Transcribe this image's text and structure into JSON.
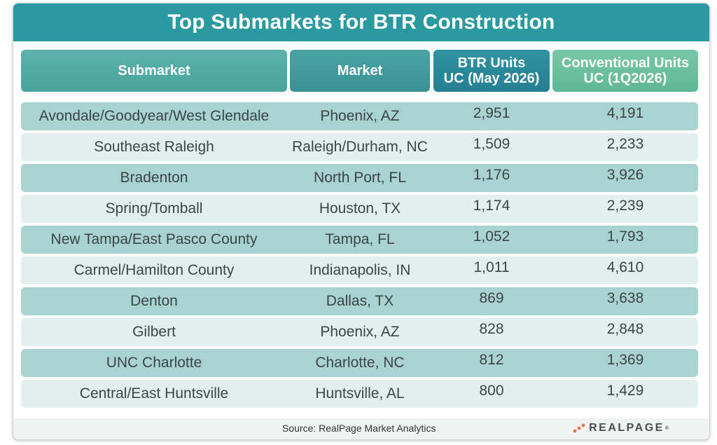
{
  "title": "Top Submarkets for BTR Construction",
  "headers": {
    "submarket": "Submarket",
    "market": "Market",
    "btr_line1": "BTR Units",
    "btr_line2": "UC (May 2026)",
    "conv_line1": "Conventional Units",
    "conv_line2": "UC (1Q2026)"
  },
  "chart_data": {
    "type": "table",
    "title": "Top Submarkets for BTR Construction",
    "columns": [
      "Submarket",
      "Market",
      "BTR Units UC (May 2026)",
      "Conventional Units UC (1Q2026)"
    ],
    "rows": [
      [
        "Avondale/Goodyear/West Glendale",
        "Phoenix, AZ",
        "2,951",
        "4,191"
      ],
      [
        "Southeast Raleigh",
        "Raleigh/Durham, NC",
        "1,509",
        "2,233"
      ],
      [
        "Bradenton",
        "North Port, FL",
        "1,176",
        "3,926"
      ],
      [
        "Spring/Tomball",
        "Houston, TX",
        "1,174",
        "2,239"
      ],
      [
        "New Tampa/East Pasco County",
        "Tampa, FL",
        "1,052",
        "1,793"
      ],
      [
        "Carmel/Hamilton County",
        "Indianapolis, IN",
        "1,011",
        "4,610"
      ],
      [
        "Denton",
        "Dallas, TX",
        "869",
        "3,638"
      ],
      [
        "Gilbert",
        "Phoenix, AZ",
        "828",
        "2,848"
      ],
      [
        "UNC Charlotte",
        "Charlotte, NC",
        "812",
        "1,369"
      ],
      [
        "Central/East Huntsville",
        "Huntsville, AL",
        "800",
        "1,429"
      ]
    ]
  },
  "footer": {
    "source": "Source:  RealPage Market Analytics",
    "logo_text": "REALPAGE",
    "logo_tm": "®"
  },
  "colors": {
    "title_bar": "#2b9aa0",
    "row_dark": "#a9d3d1",
    "row_light": "#e1f0ef",
    "logo_accent": "#e8734a"
  }
}
